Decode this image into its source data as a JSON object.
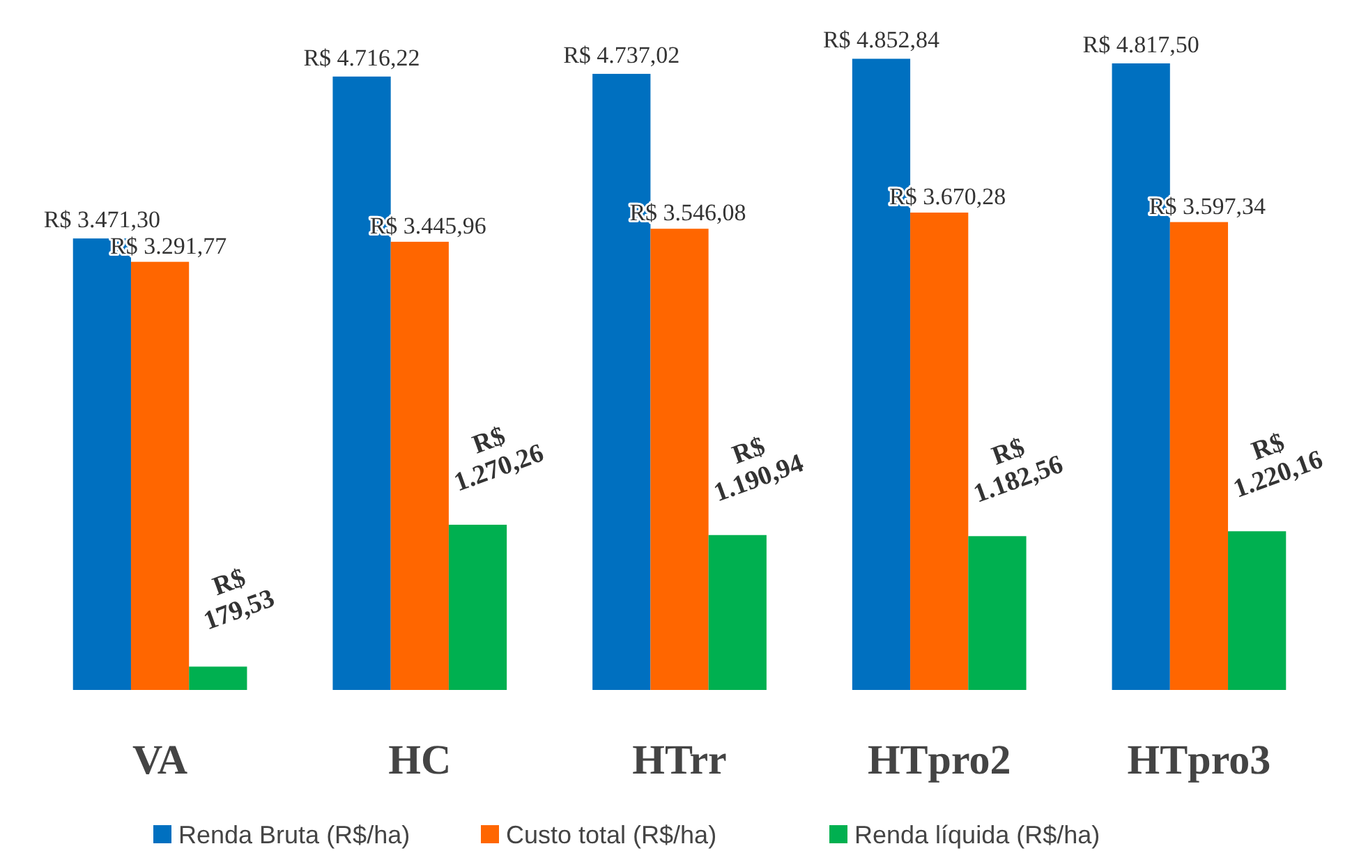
{
  "chart_data": {
    "type": "bar",
    "categories": [
      "VA",
      "HC",
      "HTrr",
      "HTpro2",
      "HTpro3"
    ],
    "series": [
      {
        "name": "Renda Bruta (R$/ha)",
        "color": "#0070c0",
        "values": [
          3471.3,
          4716.22,
          4737.02,
          4852.84,
          4817.5
        ],
        "value_labels": [
          "R$ 3.471,30",
          "R$ 4.716,22",
          "R$ 4.737,02",
          "R$ 4.852,84",
          "R$ 4.817,50"
        ]
      },
      {
        "name": "Custo total (R$/ha)",
        "color": "#ff6600",
        "values": [
          3291.77,
          3445.96,
          3546.08,
          3670.28,
          3597.34
        ],
        "value_labels": [
          "R$ 3.291,77",
          "R$ 3.445,96",
          "R$ 3.546,08",
          "R$ 3.670,28",
          "R$ 3.597,34"
        ]
      },
      {
        "name": "Renda líquida (R$/ha)",
        "color": "#00b050",
        "values": [
          179.53,
          1270.26,
          1190.94,
          1182.56,
          1220.16
        ],
        "value_labels": [
          "R$ 179,53",
          "R$ 1.270,26",
          "R$ 1.190,94",
          "R$ 1.182,56",
          "R$ 1.220,16"
        ]
      }
    ],
    "legend": "bottom"
  }
}
